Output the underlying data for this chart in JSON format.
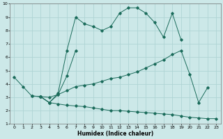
{
  "xlabel": "Humidex (Indice chaleur)",
  "xlim": [
    -0.5,
    23.5
  ],
  "ylim": [
    1,
    10
  ],
  "xticks": [
    0,
    1,
    2,
    3,
    4,
    5,
    6,
    7,
    8,
    9,
    10,
    11,
    12,
    13,
    14,
    15,
    16,
    17,
    18,
    19,
    20,
    21,
    22,
    23
  ],
  "yticks": [
    1,
    2,
    3,
    4,
    5,
    6,
    7,
    8,
    9,
    10
  ],
  "bg_color": "#cce8e8",
  "grid_color": "#afd4d4",
  "line_color": "#1a6b5a",
  "lines": [
    {
      "x": [
        0,
        1,
        2,
        3,
        4,
        5,
        6,
        7,
        8,
        9,
        10,
        11,
        12,
        13,
        14,
        15,
        16,
        17,
        18,
        19
      ],
      "y": [
        4.5,
        3.8,
        3.1,
        3.05,
        2.6,
        3.3,
        6.5,
        9.0,
        8.5,
        8.3,
        8.0,
        8.3,
        9.3,
        9.7,
        9.7,
        9.3,
        8.6,
        7.5,
        9.3,
        7.3
      ]
    },
    {
      "x": [
        2,
        3,
        4,
        5,
        6,
        7
      ],
      "y": [
        3.1,
        3.05,
        2.6,
        3.2,
        4.6,
        6.5
      ]
    },
    {
      "x": [
        3,
        4,
        5,
        6,
        7,
        8,
        9,
        10,
        11,
        12,
        13,
        14,
        15,
        16,
        17,
        18,
        19,
        20,
        21,
        22
      ],
      "y": [
        3.05,
        3.0,
        3.2,
        3.5,
        3.8,
        3.9,
        4.0,
        4.2,
        4.4,
        4.5,
        4.7,
        4.9,
        5.2,
        5.5,
        5.8,
        6.2,
        6.5,
        4.7,
        2.6,
        3.7
      ]
    },
    {
      "x": [
        3,
        4,
        5,
        6,
        7,
        8,
        9,
        10,
        11,
        12,
        13,
        14,
        15,
        16,
        17,
        18,
        19,
        20,
        21,
        22,
        23
      ],
      "y": [
        3.05,
        2.6,
        2.5,
        2.4,
        2.35,
        2.3,
        2.2,
        2.1,
        2.0,
        2.0,
        1.95,
        1.9,
        1.85,
        1.8,
        1.75,
        1.7,
        1.6,
        1.5,
        1.45,
        1.4,
        1.4
      ]
    }
  ]
}
